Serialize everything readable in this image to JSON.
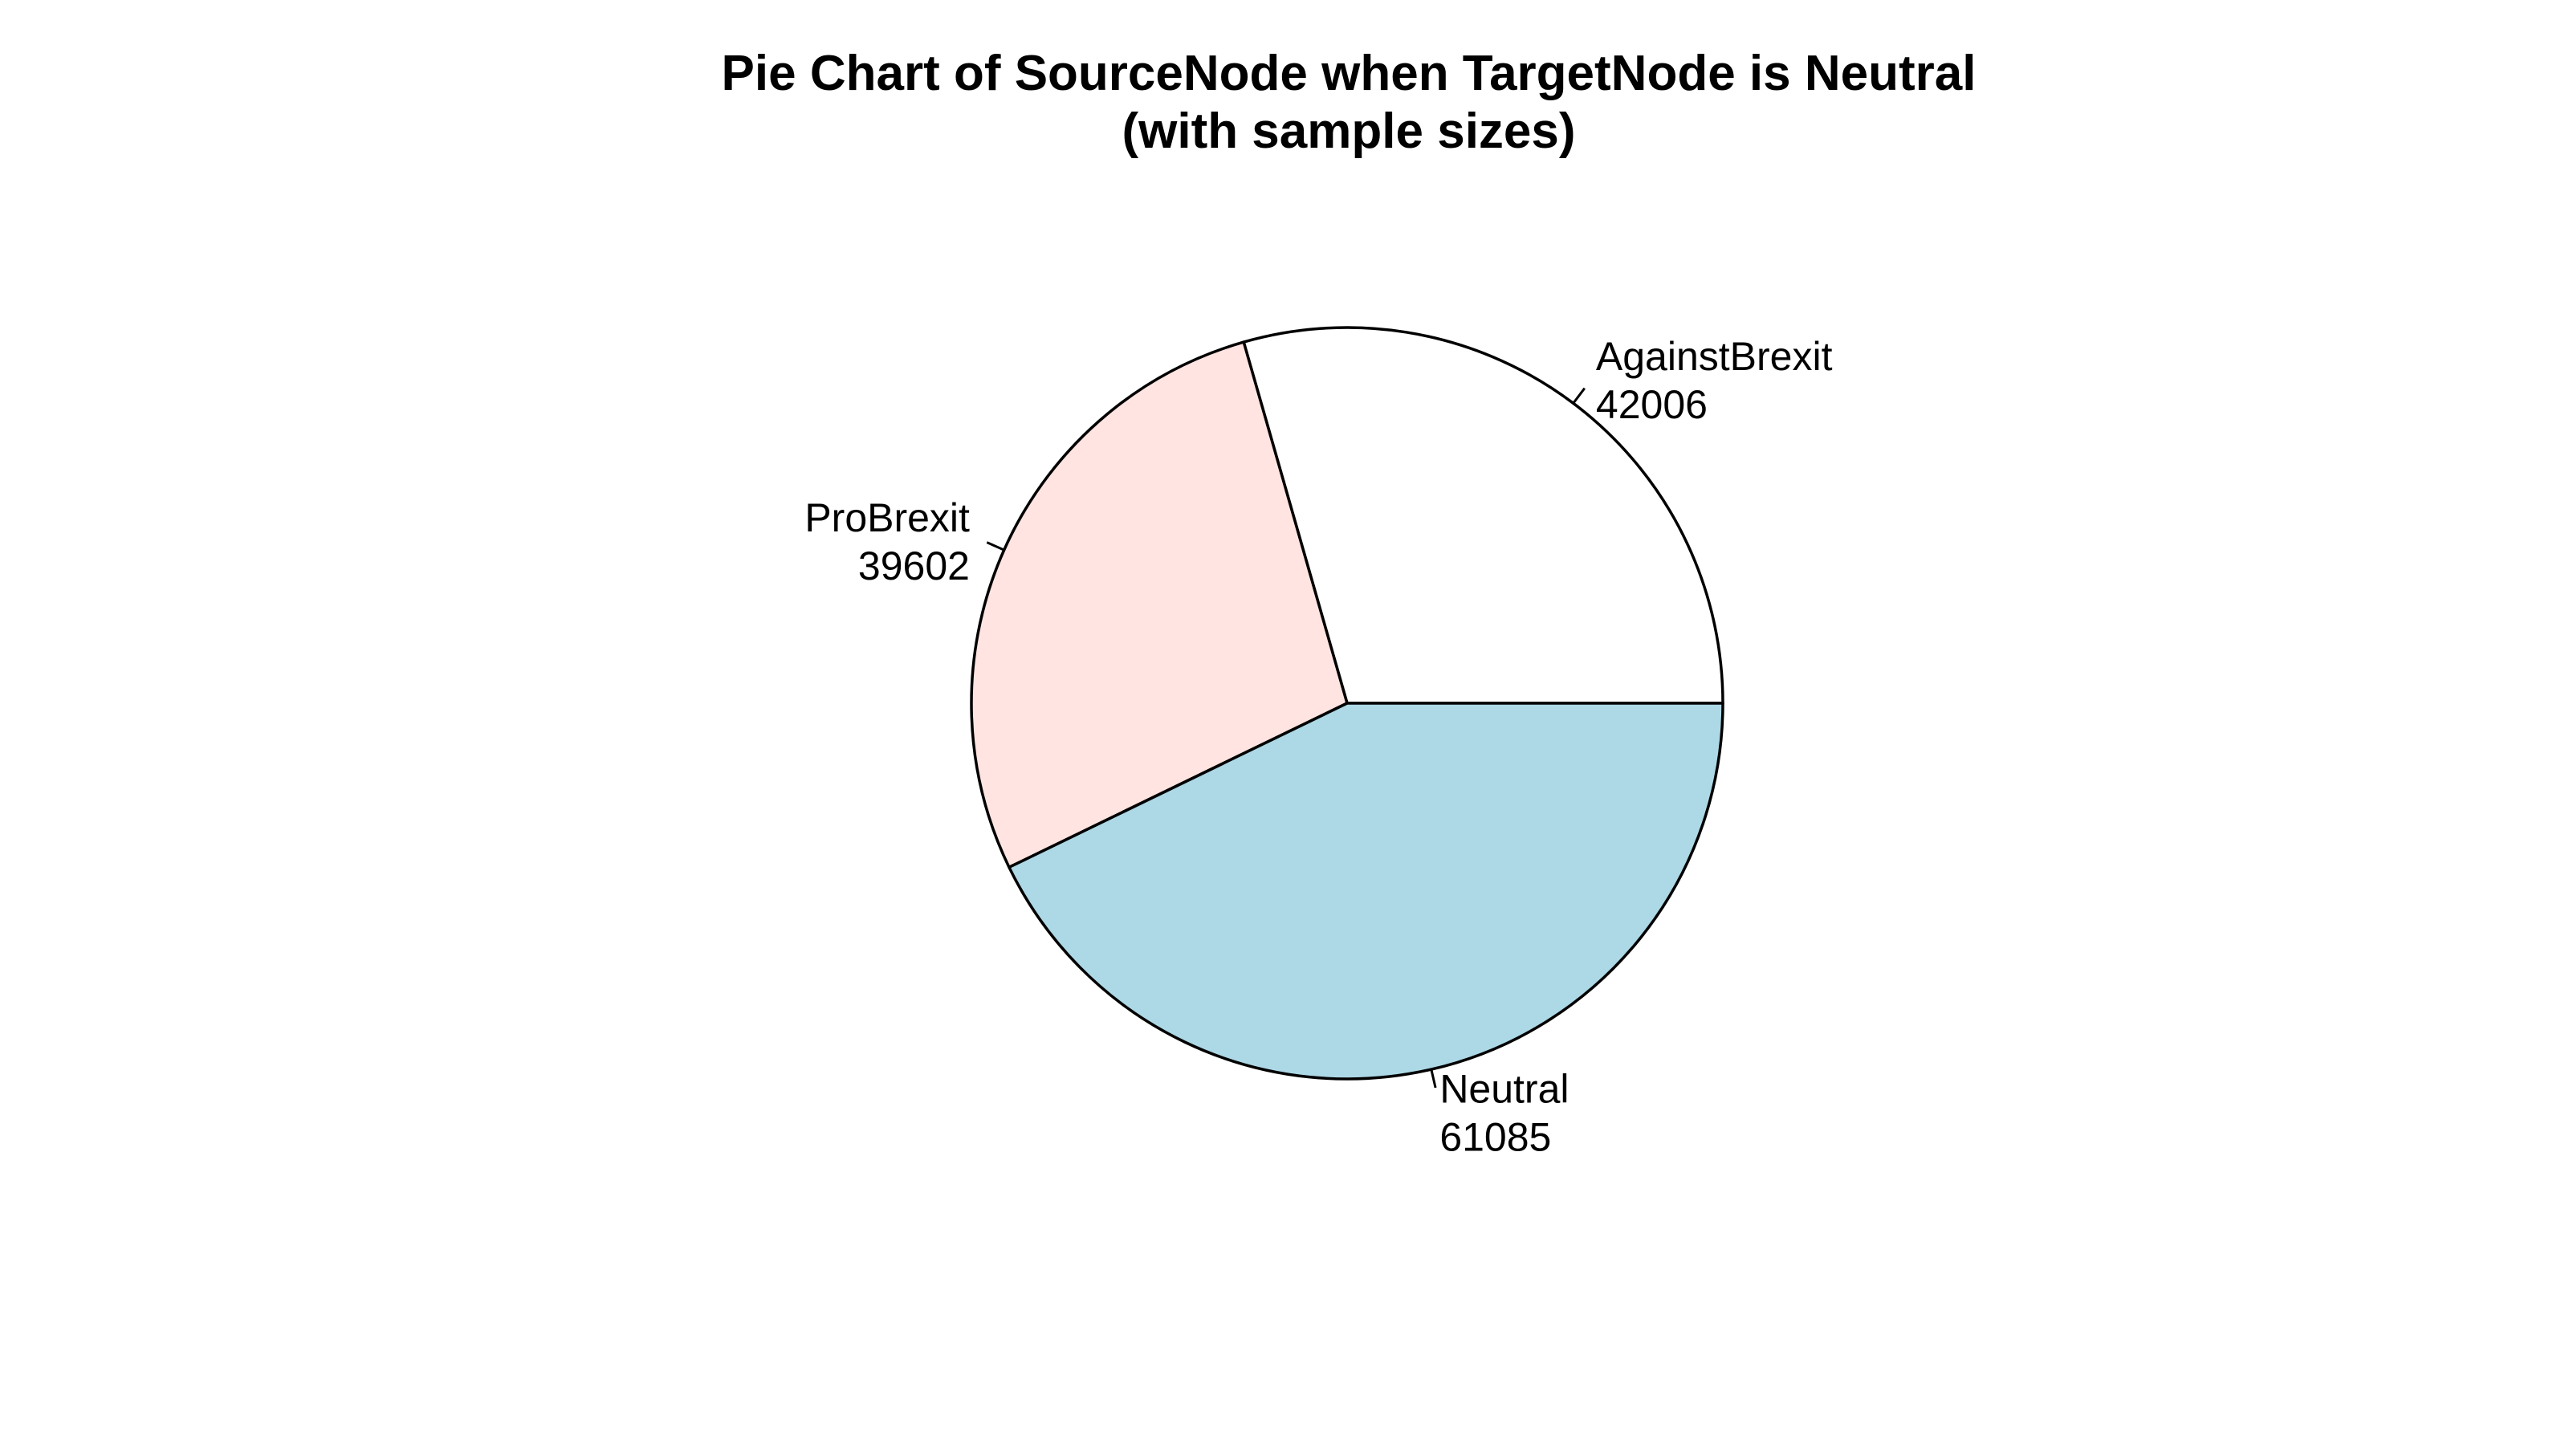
{
  "chart_data": {
    "type": "pie",
    "title": "Pie Chart of SourceNode when TargetNode is Neutral",
    "subtitle": "(with sample sizes)",
    "slices": [
      {
        "label": "AgainstBrexit",
        "value": 42006,
        "color": "#ffffff"
      },
      {
        "label": "ProBrexit",
        "value": 39602,
        "color": "#ffe4e1"
      },
      {
        "label": "Neutral",
        "value": 61085,
        "color": "#add8e6"
      }
    ],
    "start_angle_deg": 0,
    "direction": "counterclockwise",
    "outline_color": "#000000"
  }
}
